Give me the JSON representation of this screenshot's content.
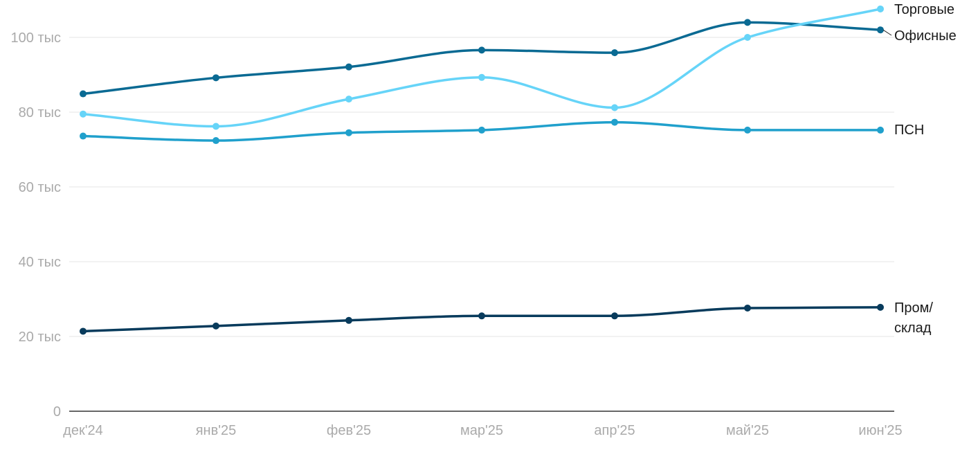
{
  "chart_data": {
    "type": "line",
    "categories": [
      "дек'24",
      "янв'25",
      "фев'25",
      "мар'25",
      "апр'25",
      "май'25",
      "июн'25"
    ],
    "ylim": [
      0,
      110000
    ],
    "yticks": [
      {
        "value": 0,
        "label": "0"
      },
      {
        "value": 20000,
        "label": "20 тыс"
      },
      {
        "value": 40000,
        "label": "40 тыс"
      },
      {
        "value": 60000,
        "label": "60 тыс"
      },
      {
        "value": 80000,
        "label": "80 тыс"
      },
      {
        "value": 100000,
        "label": "100 тыс"
      }
    ],
    "grid": true,
    "legend": "end-of-line labels",
    "series": [
      {
        "name": "Торговые",
        "color": "#66d4f8",
        "values": [
          79500,
          76200,
          83500,
          89300,
          81200,
          100000,
          107600
        ]
      },
      {
        "name": "Офисные",
        "color": "#0a6a93",
        "values": [
          84900,
          89200,
          92100,
          96600,
          95900,
          104000,
          102000
        ]
      },
      {
        "name": "ПСН",
        "color": "#20a0cc",
        "values": [
          73600,
          72400,
          74500,
          75200,
          77300,
          75200,
          75200
        ]
      },
      {
        "name": "Пром/ склад",
        "color": "#083b5c",
        "values": [
          21400,
          22800,
          24300,
          25500,
          25500,
          27600,
          27800
        ]
      }
    ],
    "xlabel": "",
    "ylabel": ""
  }
}
